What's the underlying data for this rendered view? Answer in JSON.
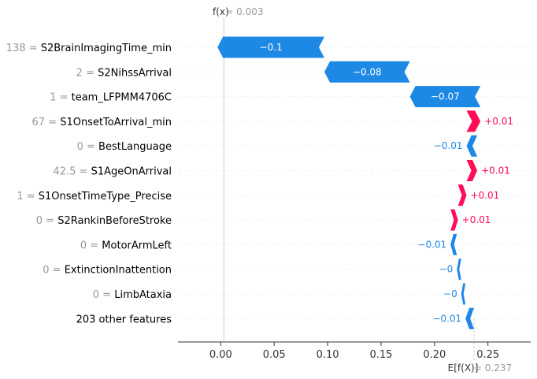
{
  "chart_data": {
    "type": "waterfall",
    "fx_label": "f(x)",
    "fx_value": "0.003",
    "ex_label": "E[f(X)]",
    "ex_value": "0.237",
    "base_value": 0.237,
    "final_value": 0.003,
    "xlim": [
      -0.04,
      0.29
    ],
    "x_ticks": [
      0.0,
      0.05,
      0.1,
      0.15,
      0.2,
      0.25
    ],
    "x_tick_labels": [
      "0.00",
      "0.05",
      "0.10",
      "0.15",
      "0.20",
      "0.25"
    ],
    "colors": {
      "positive": "#ff0d57",
      "negative": "#1e88e5"
    },
    "features": [
      {
        "value": "138",
        "name": "S2BrainImagingTime_min",
        "shap": -0.1,
        "label": "−0.1"
      },
      {
        "value": "2",
        "name": "S2NihssArrival",
        "shap": -0.08,
        "label": "−0.08"
      },
      {
        "value": "1",
        "name": "team_LFPMM4706C",
        "shap": -0.066,
        "label": "−0.07"
      },
      {
        "value": "67",
        "name": "S1OnsetToArrival_min",
        "shap": 0.013,
        "label": "+0.01"
      },
      {
        "value": "0",
        "name": "BestLanguage",
        "shap": -0.01,
        "label": "−0.01"
      },
      {
        "value": "42.5",
        "name": "S1AgeOnArrival",
        "shap": 0.01,
        "label": "+0.01"
      },
      {
        "value": "1",
        "name": "S1OnsetTimeType_Precise",
        "shap": 0.008,
        "label": "+0.01"
      },
      {
        "value": "0",
        "name": "S2RankinBeforeStroke",
        "shap": 0.007,
        "label": "+0.01"
      },
      {
        "value": "0",
        "name": "MotorArmLeft",
        "shap": -0.006,
        "label": "−0.01"
      },
      {
        "value": "0",
        "name": "ExtinctionInattention",
        "shap": -0.004,
        "label": "−0"
      },
      {
        "value": "0",
        "name": "LimbAtaxia",
        "shap": -0.004,
        "label": "−0"
      },
      {
        "value": "",
        "name": "203 other features",
        "shap": -0.008,
        "label": "−0.01"
      }
    ]
  }
}
